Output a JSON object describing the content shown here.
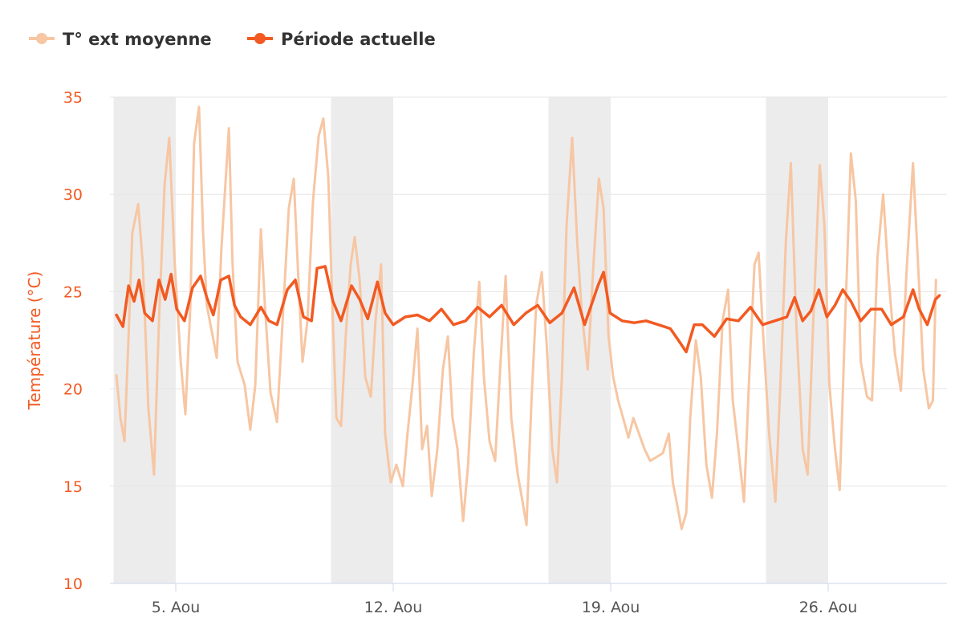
{
  "chart_data": {
    "type": "line",
    "title": "",
    "xlabel": "",
    "ylabel": "Température (°C)",
    "ylim": [
      10,
      35
    ],
    "yticks": [
      10,
      15,
      20,
      25,
      30,
      35
    ],
    "xlim_day_of_august": [
      2.9,
      29.85
    ],
    "xticks": [
      {
        "day": 5,
        "label": "5. Aou"
      },
      {
        "day": 12,
        "label": "12. Aou"
      },
      {
        "day": 19,
        "label": "19. Aou"
      },
      {
        "day": 26,
        "label": "26. Aou"
      }
    ],
    "grid": true,
    "legend_position": "top-left",
    "weekend_bands_day_of_august": [
      [
        3,
        5
      ],
      [
        10,
        12
      ],
      [
        17,
        19
      ],
      [
        24,
        26
      ]
    ],
    "colors": {
      "band": "#ececec",
      "grid": "#e6e6e6"
    },
    "series": [
      {
        "name": "T° ext moyenne",
        "color": "#f7c6a3",
        "points": [
          [
            3.09,
            20.7
          ],
          [
            3.22,
            18.5
          ],
          [
            3.35,
            17.3
          ],
          [
            3.48,
            22.7
          ],
          [
            3.6,
            28
          ],
          [
            3.79,
            29.5
          ],
          [
            3.94,
            26.4
          ],
          [
            4.12,
            19
          ],
          [
            4.3,
            15.6
          ],
          [
            4.46,
            23.5
          ],
          [
            4.64,
            30.5
          ],
          [
            4.79,
            32.9
          ],
          [
            4.97,
            26.4
          ],
          [
            5.16,
            21.4
          ],
          [
            5.31,
            18.7
          ],
          [
            5.47,
            24.3
          ],
          [
            5.59,
            32.6
          ],
          [
            5.75,
            34.5
          ],
          [
            5.88,
            28
          ],
          [
            6.0,
            24.3
          ],
          [
            6.19,
            22.7
          ],
          [
            6.32,
            21.6
          ],
          [
            6.47,
            27.2
          ],
          [
            6.71,
            33.4
          ],
          [
            6.83,
            26.4
          ],
          [
            6.99,
            21.4
          ],
          [
            7.22,
            20.2
          ],
          [
            7.4,
            17.9
          ],
          [
            7.56,
            20.2
          ],
          [
            7.74,
            28.2
          ],
          [
            7.87,
            24.3
          ],
          [
            8.05,
            19.8
          ],
          [
            8.26,
            18.3
          ],
          [
            8.44,
            23.5
          ],
          [
            8.64,
            29.3
          ],
          [
            8.8,
            30.8
          ],
          [
            8.95,
            25.6
          ],
          [
            9.08,
            21.4
          ],
          [
            9.24,
            23.5
          ],
          [
            9.42,
            29.7
          ],
          [
            9.6,
            33
          ],
          [
            9.75,
            33.9
          ],
          [
            9.91,
            30.9
          ],
          [
            10.04,
            24.3
          ],
          [
            10.17,
            18.5
          ],
          [
            10.32,
            18.1
          ],
          [
            10.47,
            22.7
          ],
          [
            10.63,
            26.4
          ],
          [
            10.76,
            27.8
          ],
          [
            10.92,
            25.6
          ],
          [
            11.1,
            20.6
          ],
          [
            11.28,
            19.6
          ],
          [
            11.43,
            23.5
          ],
          [
            11.61,
            26.4
          ],
          [
            11.74,
            17.7
          ],
          [
            11.92,
            15.2
          ],
          [
            12.1,
            16.1
          ],
          [
            12.31,
            15
          ],
          [
            12.46,
            17.7
          ],
          [
            12.62,
            20.2
          ],
          [
            12.78,
            23.1
          ],
          [
            12.93,
            16.9
          ],
          [
            13.09,
            18.1
          ],
          [
            13.24,
            14.5
          ],
          [
            13.42,
            16.9
          ],
          [
            13.6,
            21
          ],
          [
            13.76,
            22.7
          ],
          [
            13.91,
            18.5
          ],
          [
            14.07,
            16.9
          ],
          [
            14.25,
            13.2
          ],
          [
            14.41,
            16.1
          ],
          [
            14.59,
            21.8
          ],
          [
            14.77,
            25.5
          ],
          [
            14.92,
            20.6
          ],
          [
            15.1,
            17.3
          ],
          [
            15.28,
            16.3
          ],
          [
            15.44,
            21
          ],
          [
            15.62,
            25.8
          ],
          [
            15.8,
            18.5
          ],
          [
            16.01,
            15.6
          ],
          [
            16.14,
            14.4
          ],
          [
            16.29,
            13
          ],
          [
            16.45,
            19.4
          ],
          [
            16.6,
            24.3
          ],
          [
            16.78,
            26
          ],
          [
            16.94,
            22.3
          ],
          [
            17.12,
            16.9
          ],
          [
            17.27,
            15.2
          ],
          [
            17.43,
            20.6
          ],
          [
            17.58,
            28.4
          ],
          [
            17.76,
            32.9
          ],
          [
            17.92,
            27.6
          ],
          [
            18.07,
            23.9
          ],
          [
            18.26,
            21
          ],
          [
            18.46,
            26.8
          ],
          [
            18.62,
            30.8
          ],
          [
            18.77,
            29.3
          ],
          [
            18.93,
            22.7
          ],
          [
            19.08,
            20.6
          ],
          [
            19.24,
            19.4
          ],
          [
            19.4,
            18.5
          ],
          [
            19.57,
            17.5
          ],
          [
            19.73,
            18.5
          ],
          [
            19.91,
            17.7
          ],
          [
            20.09,
            16.9
          ],
          [
            20.27,
            16.3
          ],
          [
            20.48,
            16.5
          ],
          [
            20.68,
            16.7
          ],
          [
            20.87,
            17.7
          ],
          [
            21.0,
            15.2
          ],
          [
            21.12,
            14.2
          ],
          [
            21.28,
            12.8
          ],
          [
            21.43,
            13.6
          ],
          [
            21.56,
            18.5
          ],
          [
            21.74,
            22.5
          ],
          [
            21.9,
            20.6
          ],
          [
            22.08,
            16.1
          ],
          [
            22.26,
            14.4
          ],
          [
            22.42,
            17.7
          ],
          [
            22.6,
            23.5
          ],
          [
            22.78,
            25.1
          ],
          [
            22.93,
            19.4
          ],
          [
            23.11,
            16.9
          ],
          [
            23.29,
            14.2
          ],
          [
            23.48,
            21.4
          ],
          [
            23.63,
            26.4
          ],
          [
            23.76,
            27
          ],
          [
            23.91,
            22.7
          ],
          [
            24.1,
            17.7
          ],
          [
            24.3,
            14.2
          ],
          [
            24.46,
            20.2
          ],
          [
            24.64,
            27.6
          ],
          [
            24.8,
            31.6
          ],
          [
            24.97,
            23.5
          ],
          [
            25.18,
            16.9
          ],
          [
            25.34,
            15.6
          ],
          [
            25.52,
            23.5
          ],
          [
            25.73,
            31.5
          ],
          [
            25.88,
            28.4
          ],
          [
            26.04,
            20.2
          ],
          [
            26.22,
            16.9
          ],
          [
            26.37,
            14.8
          ],
          [
            26.53,
            22.7
          ],
          [
            26.73,
            32.1
          ],
          [
            26.89,
            29.7
          ],
          [
            27.05,
            21.4
          ],
          [
            27.25,
            19.6
          ],
          [
            27.41,
            19.4
          ],
          [
            27.59,
            26.8
          ],
          [
            27.77,
            30
          ],
          [
            27.95,
            25.6
          ],
          [
            28.15,
            21.8
          ],
          [
            28.34,
            19.9
          ],
          [
            28.52,
            26
          ],
          [
            28.73,
            31.6
          ],
          [
            28.88,
            26.8
          ],
          [
            29.06,
            21
          ],
          [
            29.24,
            19
          ],
          [
            29.37,
            19.4
          ],
          [
            29.47,
            25.6
          ]
        ]
      },
      {
        "name": "Période actuelle",
        "color": "#f25a22",
        "points": [
          [
            3.09,
            23.8
          ],
          [
            3.3,
            23.2
          ],
          [
            3.48,
            25.3
          ],
          [
            3.66,
            24.5
          ],
          [
            3.82,
            25.6
          ],
          [
            4.0,
            23.9
          ],
          [
            4.25,
            23.5
          ],
          [
            4.46,
            25.6
          ],
          [
            4.66,
            24.6
          ],
          [
            4.85,
            25.9
          ],
          [
            5.03,
            24.1
          ],
          [
            5.28,
            23.5
          ],
          [
            5.54,
            25.2
          ],
          [
            5.8,
            25.8
          ],
          [
            6.0,
            24.7
          ],
          [
            6.21,
            23.8
          ],
          [
            6.45,
            25.6
          ],
          [
            6.71,
            25.8
          ],
          [
            6.89,
            24.3
          ],
          [
            7.09,
            23.7
          ],
          [
            7.4,
            23.3
          ],
          [
            7.74,
            24.2
          ],
          [
            8.0,
            23.5
          ],
          [
            8.26,
            23.3
          ],
          [
            8.59,
            25.1
          ],
          [
            8.85,
            25.6
          ],
          [
            9.11,
            23.7
          ],
          [
            9.37,
            23.5
          ],
          [
            9.55,
            26.2
          ],
          [
            9.81,
            26.3
          ],
          [
            10.06,
            24.5
          ],
          [
            10.32,
            23.5
          ],
          [
            10.66,
            25.3
          ],
          [
            10.92,
            24.6
          ],
          [
            11.18,
            23.6
          ],
          [
            11.49,
            25.5
          ],
          [
            11.74,
            23.9
          ],
          [
            12.0,
            23.3
          ],
          [
            12.39,
            23.7
          ],
          [
            12.78,
            23.8
          ],
          [
            13.17,
            23.5
          ],
          [
            13.55,
            24.1
          ],
          [
            13.94,
            23.3
          ],
          [
            14.33,
            23.5
          ],
          [
            14.72,
            24.2
          ],
          [
            15.1,
            23.7
          ],
          [
            15.49,
            24.3
          ],
          [
            15.88,
            23.3
          ],
          [
            16.27,
            23.9
          ],
          [
            16.65,
            24.3
          ],
          [
            17.04,
            23.4
          ],
          [
            17.43,
            23.9
          ],
          [
            17.82,
            25.2
          ],
          [
            18.16,
            23.3
          ],
          [
            18.59,
            25.3
          ],
          [
            18.77,
            26
          ],
          [
            18.98,
            23.9
          ],
          [
            19.37,
            23.5
          ],
          [
            19.76,
            23.4
          ],
          [
            20.14,
            23.5
          ],
          [
            20.53,
            23.3
          ],
          [
            20.92,
            23.1
          ],
          [
            21.18,
            22.5
          ],
          [
            21.43,
            21.9
          ],
          [
            21.69,
            23.3
          ],
          [
            21.95,
            23.3
          ],
          [
            22.34,
            22.7
          ],
          [
            22.73,
            23.6
          ],
          [
            23.11,
            23.5
          ],
          [
            23.5,
            24.2
          ],
          [
            23.89,
            23.3
          ],
          [
            24.28,
            23.5
          ],
          [
            24.67,
            23.7
          ],
          [
            24.92,
            24.7
          ],
          [
            25.18,
            23.5
          ],
          [
            25.44,
            24
          ],
          [
            25.7,
            25.1
          ],
          [
            25.96,
            23.7
          ],
          [
            26.22,
            24.3
          ],
          [
            26.47,
            25.1
          ],
          [
            26.73,
            24.5
          ],
          [
            27.05,
            23.5
          ],
          [
            27.38,
            24.1
          ],
          [
            27.72,
            24.1
          ],
          [
            28.03,
            23.3
          ],
          [
            28.42,
            23.7
          ],
          [
            28.73,
            25.1
          ],
          [
            28.93,
            24.1
          ],
          [
            29.19,
            23.3
          ],
          [
            29.45,
            24.6
          ],
          [
            29.58,
            24.8
          ]
        ]
      }
    ]
  }
}
